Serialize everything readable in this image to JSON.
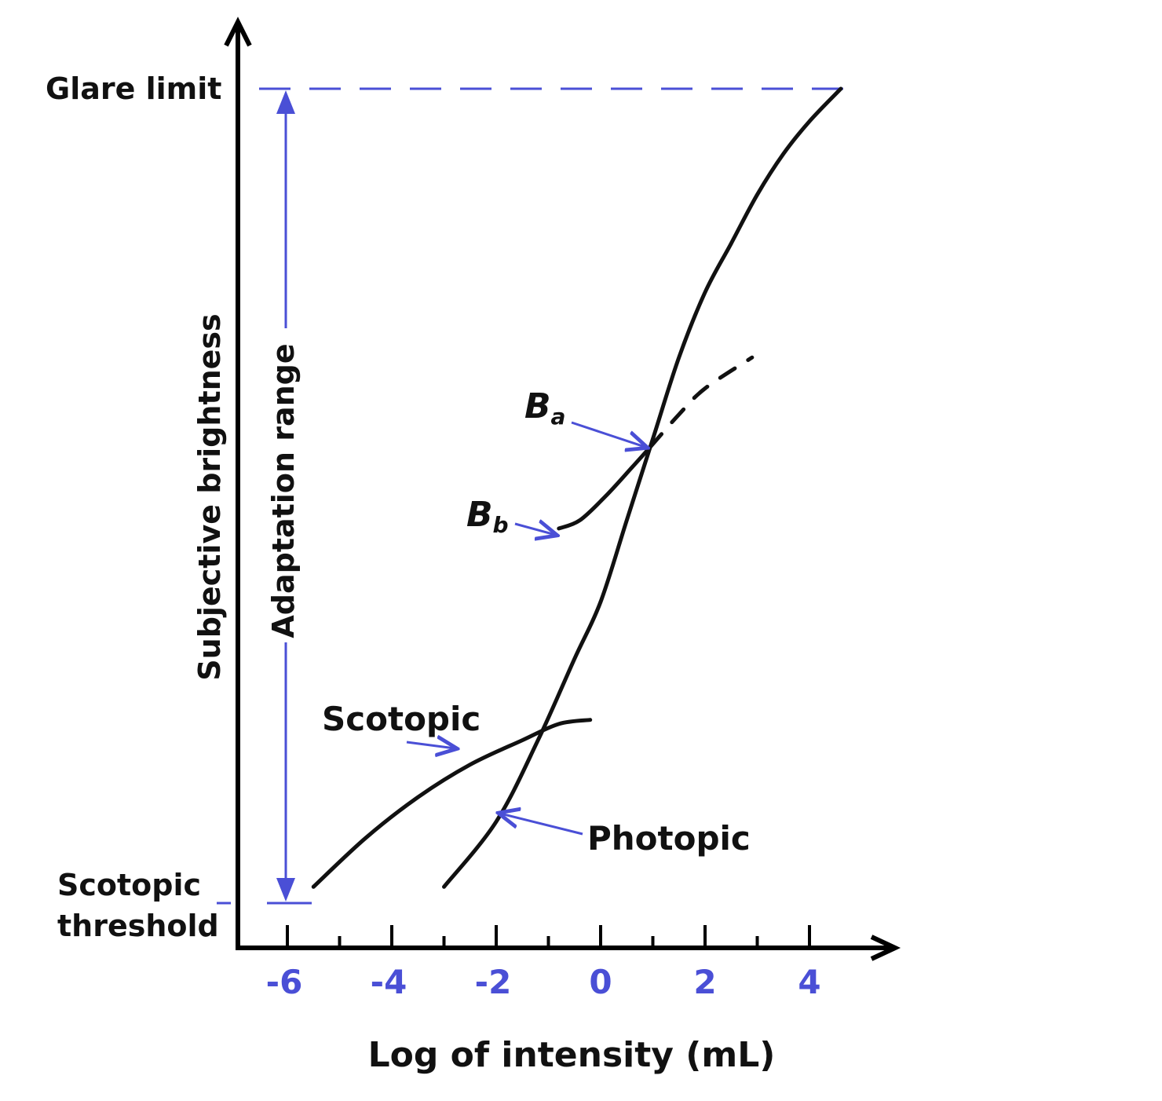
{
  "chart_data": {
    "type": "line",
    "xlabel": "Log of intensity (mL)",
    "ylabel": "Subjective brightness",
    "x_ticks": [
      "-6",
      "-4",
      "-2",
      "0",
      "2",
      "4"
    ],
    "xlim": [
      -7,
      4.8
    ],
    "ylim": [
      0,
      1
    ],
    "grid": false,
    "y_markers": [
      {
        "label": "Glare limit",
        "value": 1.0
      },
      {
        "label": "Scotopic threshold",
        "label_lines": [
          "Scotopic",
          "threshold"
        ],
        "value": 0.0
      }
    ],
    "range_annotation": {
      "label": "Adaptation range",
      "from": 0.0,
      "to": 1.0
    },
    "series": [
      {
        "name": "Scotopic",
        "x": [
          -5.5,
          -4.5,
          -3.5,
          -2.5,
          -1.5,
          -0.8,
          -0.2
        ],
        "y": [
          0.02,
          0.08,
          0.13,
          0.17,
          0.2,
          0.22,
          0.225
        ]
      },
      {
        "name": "Photopic",
        "x": [
          -3.0,
          -2.0,
          -1.2,
          -0.5,
          0.0,
          0.5,
          1.0,
          1.5,
          2.0,
          2.5,
          3.0,
          3.5,
          4.0,
          4.6
        ],
        "y": [
          0.02,
          0.1,
          0.2,
          0.3,
          0.37,
          0.47,
          0.57,
          0.67,
          0.75,
          0.81,
          0.87,
          0.92,
          0.96,
          1.0
        ]
      },
      {
        "name": "Bb curve",
        "x": [
          -0.8,
          -0.4,
          0.1,
          0.6,
          0.95
        ],
        "y": [
          0.46,
          0.47,
          0.5,
          0.535,
          0.56
        ]
      },
      {
        "name": "dashed extension",
        "dashed": true,
        "x": [
          0.95,
          1.5,
          2.0,
          2.9
        ],
        "y": [
          0.56,
          0.6,
          0.632,
          0.67
        ]
      }
    ],
    "annotations": [
      {
        "label": "B",
        "subscript": "a",
        "points_to": [
          0.95,
          0.56
        ]
      },
      {
        "label": "B",
        "subscript": "b",
        "points_to": [
          -0.75,
          0.46
        ]
      },
      {
        "label": "Scotopic",
        "points_to": [
          -2.7,
          0.19
        ]
      },
      {
        "label": "Photopic",
        "points_to": [
          -1.8,
          0.11
        ]
      }
    ]
  },
  "colors": {
    "curve": "#111111",
    "axis": "#000000",
    "accent_blue": "#4a4fd6"
  }
}
